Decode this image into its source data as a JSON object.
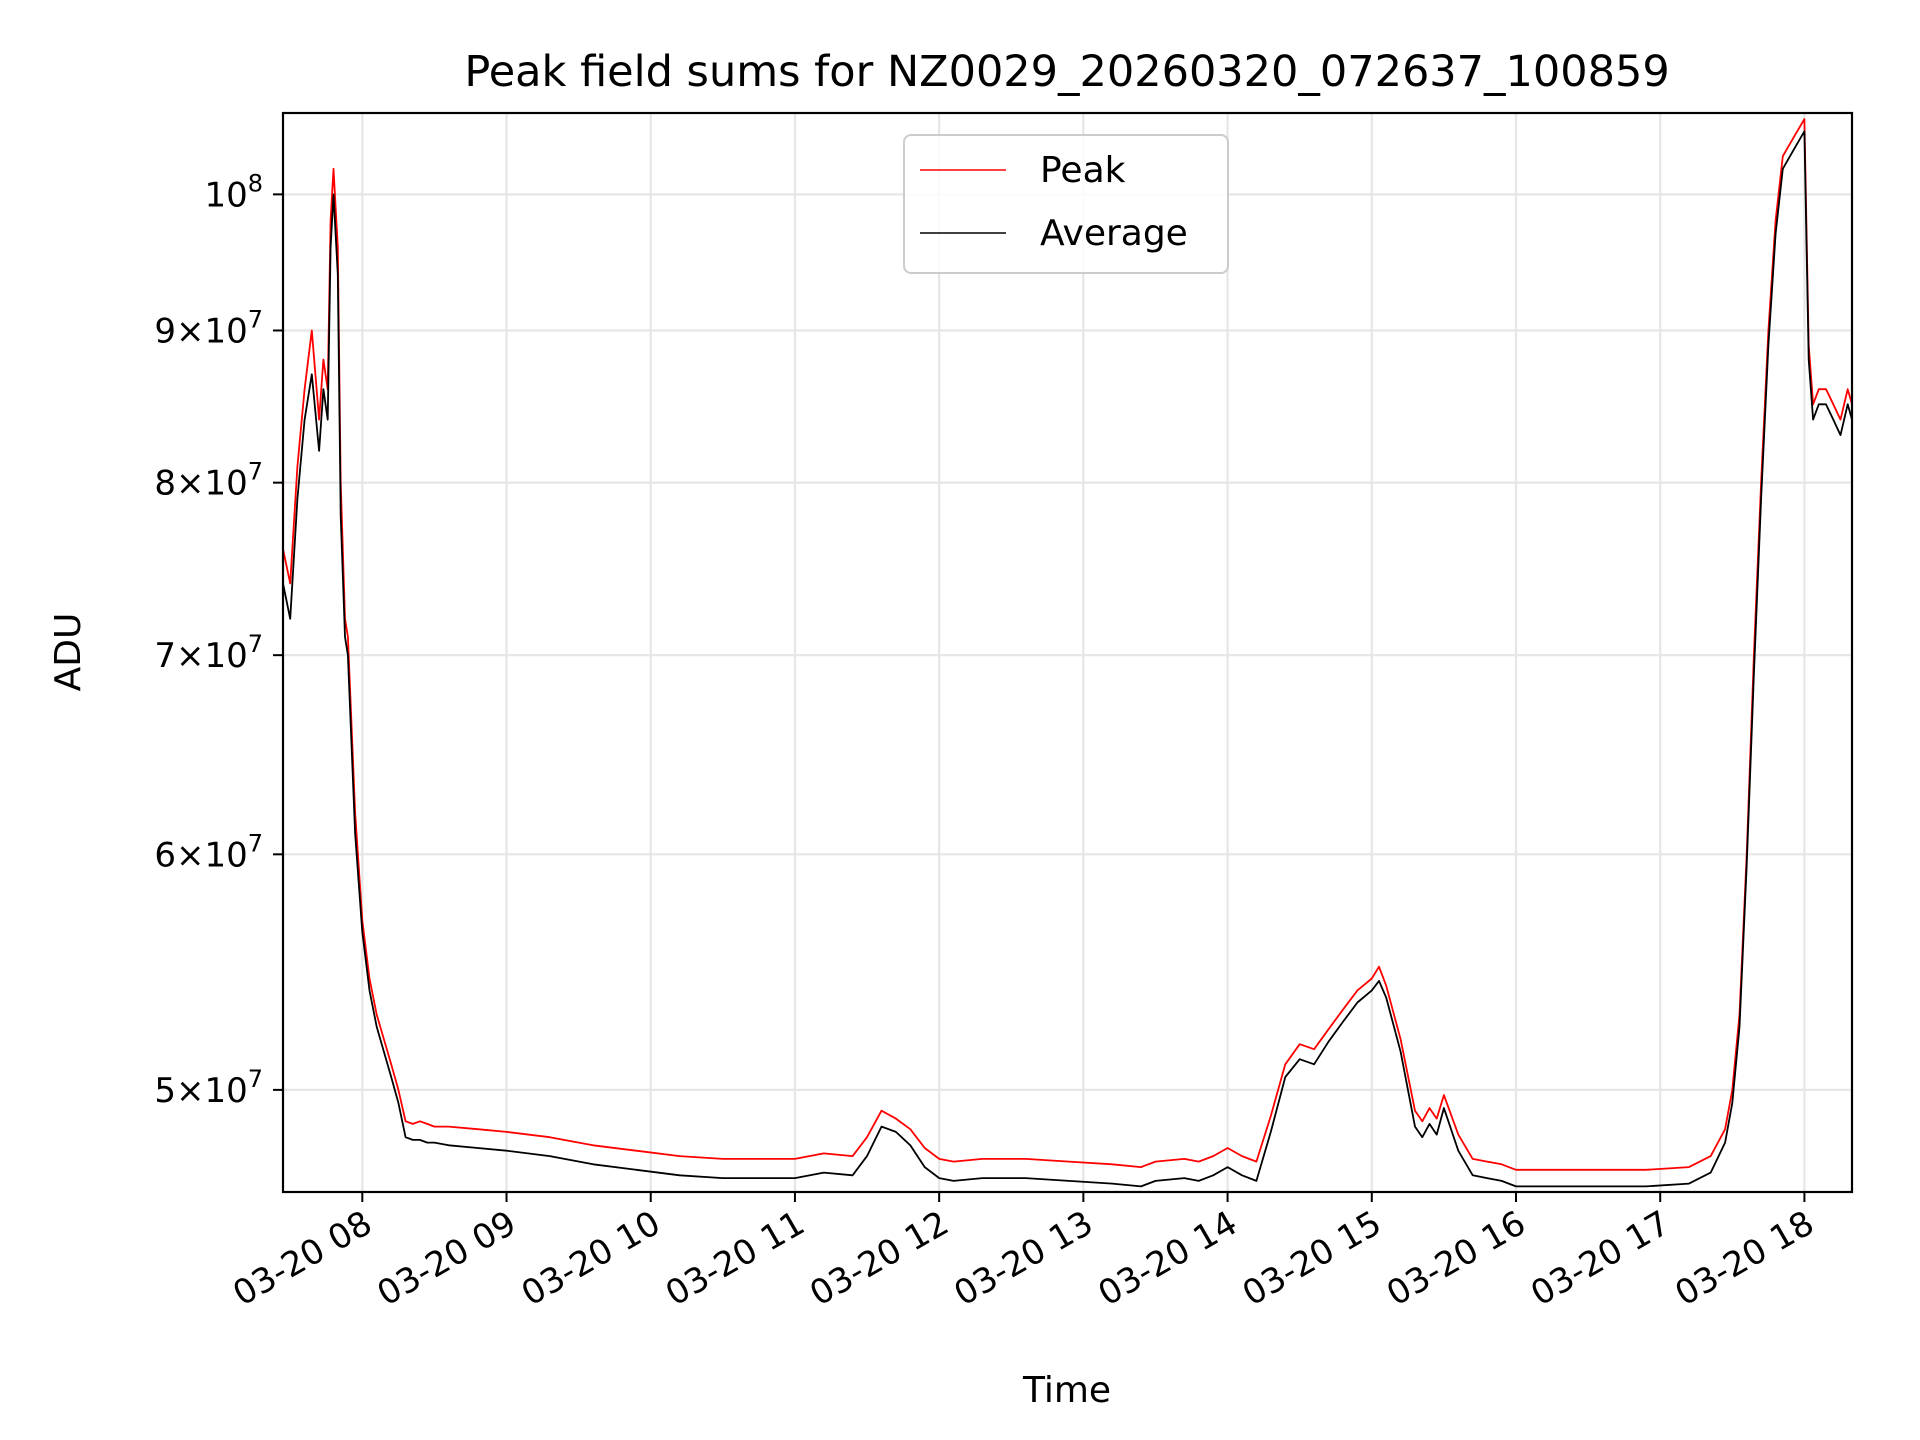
{
  "chart_data": {
    "type": "line",
    "title": "Peak field sums for NZ0029_20260320_072637_100859",
    "xlabel": "Time",
    "ylabel": "ADU",
    "yscale": "log",
    "xlim": [
      7.45,
      18.33
    ],
    "ylim": [
      46200000,
      106500000
    ],
    "grid": true,
    "legend_position": "top-center",
    "x_ticks": [
      {
        "value": 8,
        "label": "03-20 08"
      },
      {
        "value": 9,
        "label": "03-20 09"
      },
      {
        "value": 10,
        "label": "03-20 10"
      },
      {
        "value": 11,
        "label": "03-20 11"
      },
      {
        "value": 12,
        "label": "03-20 12"
      },
      {
        "value": 13,
        "label": "03-20 13"
      },
      {
        "value": 14,
        "label": "03-20 14"
      },
      {
        "value": 15,
        "label": "03-20 15"
      },
      {
        "value": 16,
        "label": "03-20 16"
      },
      {
        "value": 17,
        "label": "03-20 17"
      },
      {
        "value": 18,
        "label": "03-20 18"
      }
    ],
    "y_ticks": [
      {
        "value": 50000000,
        "mant": "5",
        "exp": "7"
      },
      {
        "value": 60000000,
        "mant": "6",
        "exp": "7"
      },
      {
        "value": 70000000,
        "mant": "7",
        "exp": "7"
      },
      {
        "value": 80000000,
        "mant": "8",
        "exp": "7"
      },
      {
        "value": 90000000,
        "mant": "9",
        "exp": "7"
      },
      {
        "value": 100000000,
        "mant": "",
        "exp": "8"
      }
    ],
    "series": [
      {
        "name": "Peak",
        "color": "#ff0000",
        "x": [
          7.45,
          7.5,
          7.55,
          7.6,
          7.65,
          7.7,
          7.73,
          7.76,
          7.78,
          7.8,
          7.83,
          7.85,
          7.88,
          7.9,
          7.95,
          8.0,
          8.05,
          8.1,
          8.15,
          8.2,
          8.25,
          8.3,
          8.35,
          8.4,
          8.45,
          8.5,
          8.6,
          8.8,
          9.0,
          9.3,
          9.6,
          9.9,
          10.2,
          10.5,
          10.8,
          11.0,
          11.2,
          11.4,
          11.5,
          11.6,
          11.7,
          11.8,
          11.9,
          12.0,
          12.1,
          12.3,
          12.6,
          12.9,
          13.2,
          13.4,
          13.5,
          13.7,
          13.8,
          13.9,
          14.0,
          14.1,
          14.2,
          14.3,
          14.4,
          14.5,
          14.6,
          14.7,
          14.8,
          14.9,
          15.0,
          15.05,
          15.1,
          15.2,
          15.3,
          15.35,
          15.4,
          15.45,
          15.5,
          15.6,
          15.7,
          15.8,
          15.9,
          16.0,
          16.3,
          16.6,
          16.9,
          17.2,
          17.35,
          17.45,
          17.5,
          17.55,
          17.6,
          17.65,
          17.7,
          17.75,
          17.8,
          17.85,
          17.9,
          17.95,
          18.0,
          18.03,
          18.06,
          18.1,
          18.15,
          18.2,
          18.25,
          18.3,
          18.33
        ],
        "y": [
          76000000,
          74000000,
          81000000,
          86000000,
          90000000,
          84000000,
          88000000,
          86000000,
          98000000,
          102000000,
          96000000,
          80000000,
          72000000,
          71000000,
          62000000,
          57000000,
          54500000,
          53000000,
          52000000,
          51000000,
          50000000,
          48800000,
          48700000,
          48800000,
          48700000,
          48600000,
          48600000,
          48500000,
          48400000,
          48200000,
          47900000,
          47700000,
          47500000,
          47400000,
          47400000,
          47400000,
          47600000,
          47500000,
          48200000,
          49200000,
          48900000,
          48500000,
          47800000,
          47400000,
          47300000,
          47400000,
          47400000,
          47300000,
          47200000,
          47100000,
          47300000,
          47400000,
          47300000,
          47500000,
          47800000,
          47500000,
          47300000,
          49000000,
          51000000,
          51800000,
          51600000,
          52400000,
          53200000,
          54000000,
          54500000,
          55000000,
          54200000,
          52000000,
          49200000,
          48800000,
          49300000,
          48900000,
          49800000,
          48300000,
          47400000,
          47300000,
          47200000,
          47000000,
          47000000,
          47000000,
          47000000,
          47100000,
          47500000,
          48500000,
          50000000,
          53000000,
          60000000,
          70000000,
          80000000,
          90000000,
          98000000,
          103000000,
          104000000,
          105000000,
          106000000,
          89000000,
          85000000,
          86000000,
          86000000,
          85000000,
          84000000,
          86000000,
          85000000
        ]
      },
      {
        "name": "Average",
        "color": "#000000",
        "x": [
          7.45,
          7.5,
          7.55,
          7.6,
          7.65,
          7.7,
          7.73,
          7.76,
          7.78,
          7.8,
          7.83,
          7.85,
          7.88,
          7.9,
          7.95,
          8.0,
          8.05,
          8.1,
          8.15,
          8.2,
          8.25,
          8.3,
          8.35,
          8.4,
          8.45,
          8.5,
          8.6,
          8.8,
          9.0,
          9.3,
          9.6,
          9.9,
          10.2,
          10.5,
          10.8,
          11.0,
          11.2,
          11.4,
          11.5,
          11.6,
          11.7,
          11.8,
          11.9,
          12.0,
          12.1,
          12.3,
          12.6,
          12.9,
          13.2,
          13.4,
          13.5,
          13.7,
          13.8,
          13.9,
          14.0,
          14.1,
          14.2,
          14.3,
          14.4,
          14.5,
          14.6,
          14.7,
          14.8,
          14.9,
          15.0,
          15.05,
          15.1,
          15.2,
          15.3,
          15.35,
          15.4,
          15.45,
          15.5,
          15.6,
          15.7,
          15.8,
          15.9,
          16.0,
          16.3,
          16.6,
          16.9,
          17.2,
          17.35,
          17.45,
          17.5,
          17.55,
          17.6,
          17.65,
          17.7,
          17.75,
          17.8,
          17.85,
          17.9,
          17.95,
          18.0,
          18.03,
          18.06,
          18.1,
          18.15,
          18.2,
          18.25,
          18.3,
          18.33
        ],
        "y": [
          74000000,
          72000000,
          79000000,
          84000000,
          87000000,
          82000000,
          86000000,
          84000000,
          96000000,
          100000000,
          94000000,
          78000000,
          71000000,
          70000000,
          61000000,
          56500000,
          54000000,
          52500000,
          51500000,
          50500000,
          49500000,
          48200000,
          48100000,
          48100000,
          48000000,
          48000000,
          47900000,
          47800000,
          47700000,
          47500000,
          47200000,
          47000000,
          46800000,
          46700000,
          46700000,
          46700000,
          46900000,
          46800000,
          47500000,
          48600000,
          48400000,
          47900000,
          47100000,
          46700000,
          46600000,
          46700000,
          46700000,
          46600000,
          46500000,
          46400000,
          46600000,
          46700000,
          46600000,
          46800000,
          47100000,
          46800000,
          46600000,
          48400000,
          50500000,
          51200000,
          51000000,
          51900000,
          52700000,
          53500000,
          54000000,
          54400000,
          53700000,
          51500000,
          48600000,
          48200000,
          48700000,
          48300000,
          49300000,
          47700000,
          46800000,
          46700000,
          46600000,
          46400000,
          46400000,
          46400000,
          46400000,
          46500000,
          46900000,
          48000000,
          49500000,
          52500000,
          59500000,
          69000000,
          79000000,
          89000000,
          97000000,
          102000000,
          103000000,
          104000000,
          105000000,
          88000000,
          84000000,
          85000000,
          85000000,
          84000000,
          83000000,
          85000000,
          84000000
        ]
      }
    ]
  }
}
